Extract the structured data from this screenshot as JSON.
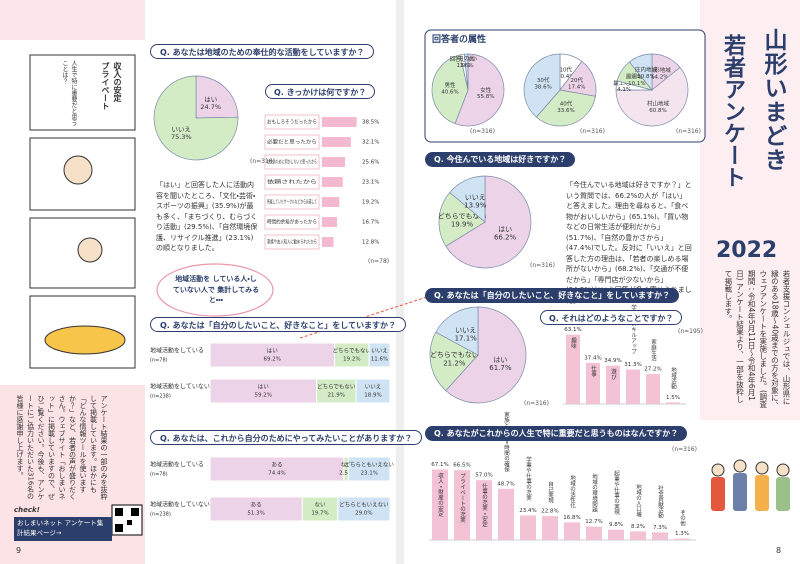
{
  "left_page": {
    "page_number": "9",
    "comic": [
      "収入の安定",
      "プライベート",
      "人生で特に重要だと思うことは？"
    ],
    "q_volunteer": {
      "question": "Q. あなたは地域のための奉仕的な活動をしていますか？",
      "n": "(n=316)",
      "categories": [
        "はい",
        "いいえ"
      ],
      "values": [
        24.7,
        75.3
      ],
      "value_labels": [
        "24.7%",
        "75.3%"
      ],
      "colors": [
        "#ecd3e8",
        "#d4ecc6"
      ]
    },
    "q_reason": {
      "question": "Q. きっかけは何ですか？",
      "n": "(n=78)",
      "categories": [
        "おもしろそうだったから",
        "必要だと思ったから",
        "社会のために何かしたいと思ったから",
        "依頼されたから",
        "所属していたサークルなどから派遣して",
        "時間的余裕があったから",
        "家族や友人知人に勧められたから"
      ],
      "values": [
        38.5,
        32.1,
        25.6,
        23.1,
        19.2,
        16.7,
        12.8
      ],
      "value_labels": [
        "38.5%",
        "32.1%",
        "25.6%",
        "23.1%",
        "19.2%",
        "16.7%",
        "12.8%"
      ],
      "color": "#f3b9cf"
    },
    "note": "「はい」と回答した人に活動内容を聞いたところ、「文化・芸術・スポーツの振興」(35.9%)が最も多く、「まちづくり、むらづくり活動」(29.5%)、「自然環境保護、リサイクル推進」(23.1%)の順となりました。",
    "bubble": "地域活動を している人・していない人で 集計してみると・・・",
    "q_doing": {
      "question": "Q. あなたは「自分のしたいこと、好きなこと」をしていますか？",
      "categories": [
        "はい",
        "どちらでもない",
        "いいえ"
      ],
      "colors": [
        "#ecd3e8",
        "#d4ecc6",
        "#cfe3f4"
      ],
      "groups": [
        {
          "name": "地域活動をしている",
          "n": "(n=78)",
          "values": [
            69.2,
            19.2,
            11.6
          ],
          "value_labels": [
            "69.2%",
            "19.2%",
            "11.6%"
          ]
        },
        {
          "name": "地域活動をしていない",
          "n": "(n=238)",
          "values": [
            59.2,
            21.9,
            18.9
          ],
          "value_labels": [
            "59.2%",
            "21.9%",
            "18.9%"
          ]
        }
      ]
    },
    "q_future": {
      "question": "Q. あなたは、これから自分のためにやってみたいことがありますか？",
      "categories": [
        "ある",
        "ない",
        "どちらともいえない"
      ],
      "colors": [
        "#ecd3e8",
        "#d4ecc6",
        "#cfe3f4"
      ],
      "groups": [
        {
          "name": "地域活動をしている",
          "n": "(n=78)",
          "values": [
            74.4,
            2.5,
            23.1
          ],
          "value_labels": [
            "74.4%",
            "2.5%",
            "23.1%"
          ]
        },
        {
          "name": "地域活動をしていない",
          "n": "(n=238)",
          "values": [
            51.3,
            19.7,
            29.0
          ],
          "value_labels": [
            "51.3%",
            "19.7%",
            "29.0%"
          ]
        }
      ]
    },
    "info": "アンケート結果の一部のみを抜粋して掲載しています。ほかにも「どんな情報ツールを使いますか？」など、若者の声が盛りだくさん。ウェブサイト「おしまいネット」に掲載していますので、ぜひご覧ください。今後も、アンケートにご協力いただいた316名の皆様に感謝申し上げます。",
    "check": "check!",
    "link": "おしまいネット アンケート集計結果ページ→"
  },
  "right_page": {
    "page_number": "8",
    "title_main": "山形いまどき",
    "title_sub": "若者アンケート",
    "title_year": "2022",
    "intro": "若者支援コンシェルジュでは、山形県に縁のある18歳〜40歳までの方を対象に、ウェブアンケートを実施しました。(調査期間：令和4年5月11日〜令和4年6月1日) アンケート結果より、一部を抜粋して掲載します。",
    "attributes": {
      "title": "回答者の属性",
      "gender": {
        "n": "(n=316)",
        "categories": [
          "女性",
          "男性",
          "回答しない",
          "その他"
        ],
        "values": [
          55.8,
          40.6,
          1.9,
          1.6
        ],
        "value_labels": [
          "55.8%",
          "40.6%",
          "1.9%",
          "1.6%"
        ],
        "colors": [
          "#ecd3e8",
          "#d4ecc6",
          "#ffffff",
          "#cfe3f4"
        ]
      },
      "age": {
        "n": "(n=316)",
        "categories": [
          "10代",
          "20代",
          "40代",
          "30代"
        ],
        "values": [
          10.4,
          17.4,
          33.6,
          38.6
        ],
        "value_labels": [
          "10.4%",
          "17.4%",
          "33.6%",
          "38.6%"
        ],
        "colors": [
          "#ffffff",
          "#ecd3e8",
          "#d4ecc6",
          "#cfe3f4"
        ]
      },
      "region": {
        "n": "(n=316)",
        "categories": [
          "山形地域",
          "村山地域",
          "最上地域",
          "置賜地域",
          "庄内地域"
        ],
        "values": [
          14.2,
          60.8,
          4.1,
          10.1,
          10.8
        ],
        "value_labels": [
          "14.2%",
          "60.8%",
          "4.1%",
          "10.1%",
          "10.8%"
        ],
        "colors": [
          "#ecd3e8",
          "#f4e4ee",
          "#ffffff",
          "#d4ecc6",
          "#cfe3f4"
        ]
      }
    },
    "q_like": {
      "question": "Q. 今住んでいる地域は好きですか？",
      "n": "(n=316)",
      "categories": [
        "はい",
        "どちらでもない",
        "いいえ"
      ],
      "values": [
        66.2,
        19.9,
        13.9
      ],
      "value_labels": [
        "66.2%",
        "19.9%",
        "13.9%"
      ],
      "colors": [
        "#ecd3e8",
        "#d4ecc6",
        "#cfe3f4"
      ]
    },
    "like_text": "「今住んでいる地域は好きですか？」という質問では、66.2%の人が「はい」と答えました。理由を尋ねると、「食べ物がおいしいから」(65.1%)、「買い物などの日常生活が便利だから」(51.7%)、「自然の豊かさから」(47.4%)でした。反対に「いいえ」と回答した方の理由は、「若者の楽しめる場所がないから」(68.2%)、「交通が不便だから」「専門店が少ないから」(54.5%)という回答が多く寄せられました。",
    "q_doing": {
      "question": "Q. あなたは「自分のしたいこと、好きなこと」をしていますか？",
      "n": "(n=316)",
      "categories": [
        "はい",
        "どちらでもない",
        "いいえ"
      ],
      "values": [
        61.7,
        21.2,
        17.1
      ],
      "value_labels": [
        "61.7%",
        "21.2%",
        "17.1%"
      ],
      "colors": [
        "#ecd3e8",
        "#d4ecc6",
        "#cfe3f4"
      ]
    },
    "q_what": {
      "question": "Q. それはどのようなことですか？",
      "n": "(n=195)",
      "categories": [
        "趣味",
        "仕事",
        "遊び",
        "学び・スキルアップ",
        "家庭生活",
        "地域活動"
      ],
      "values": [
        63.1,
        37.4,
        34.9,
        31.3,
        27.2,
        1.5
      ],
      "value_labels": [
        "63.1%",
        "37.4%",
        "34.9%",
        "31.3%",
        "27.2%",
        "1.5%"
      ],
      "color": "#f3c2d4"
    },
    "q_important": {
      "question": "Q. あなたがこれからの人生で特に重要だと思うものはなんですか？",
      "n": "(n=316)",
      "categories": [
        "収入・財産の安定",
        "プライベートの充実",
        "仕事の充実・安定",
        "家族と過ごす時間の確保",
        "学業や仕事の充実",
        "自己実現",
        "地域の活性化",
        "地域の環境問題",
        "起業や仕事の実現",
        "地域の人口増",
        "社会貢献活動",
        "その他"
      ],
      "values": [
        67.1,
        66.5,
        57.0,
        48.7,
        23.4,
        22.8,
        16.8,
        12.7,
        9.8,
        8.2,
        7.3,
        1.3
      ],
      "value_labels": [
        "67.1%",
        "66.5%",
        "57.0%",
        "48.7%",
        "23.4%",
        "22.8%",
        "16.8%",
        "12.7%",
        "9.8%",
        "8.2%",
        "7.3%",
        "1.3%"
      ],
      "color": "#f3c2d4"
    }
  }
}
